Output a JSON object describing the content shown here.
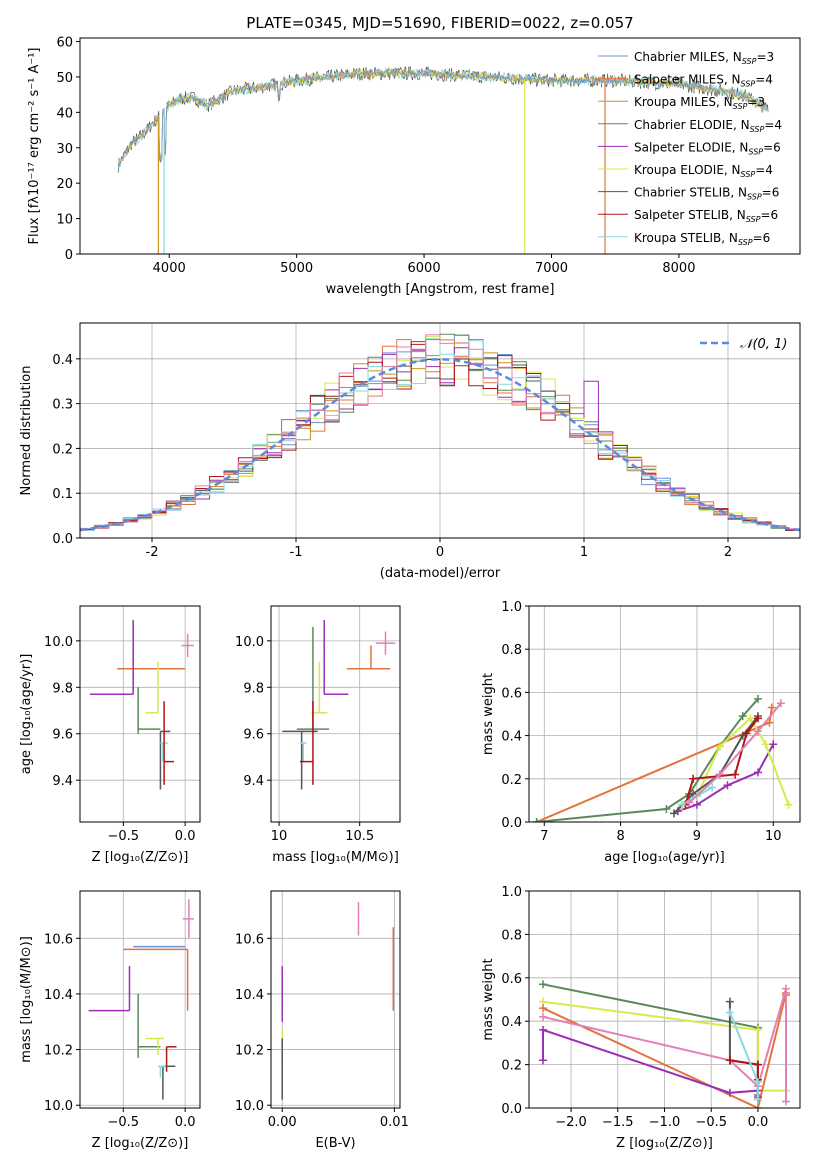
{
  "figure": {
    "title": "PLATE=0345, MJD=51690, FIBERID=0022, z=0.057"
  },
  "colors": {
    "Chabrier MILES": "#6b93d6",
    "Salpeter MILES": "#e1743a",
    "Kroupa MILES": "#c8961e",
    "Chabrier ELODIE": "#5a8a5a",
    "Salpeter ELODIE": "#9b2fb5",
    "Kroupa ELODIE": "#d9e84a",
    "Chabrier STELIB": "#555555",
    "Salpeter STELIB": "#b01515",
    "Kroupa STELIB": "#8ad8e0",
    "extra_pink": "#e37fb6",
    "gauss": "#5b8cdc"
  },
  "chart_data": [
    {
      "id": "spectrum",
      "type": "line",
      "title": "PLATE=0345, MJD=51690, FIBERID=0022, z=0.057",
      "xlabel": "wavelength [Angstrom, rest frame]",
      "ylabel": "Flux [fλ10⁻¹⁷ erg cm⁻² s⁻¹ A⁻¹]",
      "xlim": [
        3300,
        8950
      ],
      "ylim": [
        0,
        61
      ],
      "xticks": [
        4000,
        5000,
        6000,
        7000,
        8000
      ],
      "yticks": [
        0,
        10,
        20,
        30,
        40,
        50,
        60
      ],
      "grid": false,
      "legend_position": "top-right",
      "legend": [
        {
          "label": "Chabrier MILES, N",
          "sub": "SSP",
          "suffix": "=3"
        },
        {
          "label": "Salpeter MILES, N",
          "sub": "SSP",
          "suffix": "=4"
        },
        {
          "label": "Kroupa MILES, N",
          "sub": "SSP",
          "suffix": "=3"
        },
        {
          "label": "Chabrier ELODIE, N",
          "sub": "SSP",
          "suffix": "=4"
        },
        {
          "label": "Salpeter ELODIE, N",
          "sub": "SSP",
          "suffix": "=6"
        },
        {
          "label": "Kroupa ELODIE, N",
          "sub": "SSP",
          "suffix": "=4"
        },
        {
          "label": "Chabrier STELIB, N",
          "sub": "SSP",
          "suffix": "=6"
        },
        {
          "label": "Salpeter STELIB, N",
          "sub": "SSP",
          "suffix": "=6"
        },
        {
          "label": "Kroupa STELIB, N",
          "sub": "SSP",
          "suffix": "=6"
        }
      ],
      "continuum": {
        "x": [
          3600,
          3700,
          3800,
          3900,
          4000,
          4100,
          4200,
          4300,
          4500,
          4700,
          5000,
          5500,
          6000,
          6500,
          7000,
          7500,
          8000,
          8500,
          8700
        ],
        "y": [
          25,
          31,
          34,
          38,
          42,
          44,
          44,
          42,
          46,
          47,
          49,
          51,
          51,
          50,
          49,
          49,
          48,
          45,
          41
        ]
      }
    },
    {
      "id": "residuals",
      "type": "bar",
      "xlabel": "(data-model)/error",
      "ylabel": "Normed distribution",
      "xlim": [
        -2.5,
        2.5
      ],
      "ylim": [
        0,
        0.48
      ],
      "xticks": [
        -2,
        -1,
        0,
        1,
        2
      ],
      "yticks": [
        0.0,
        0.1,
        0.2,
        0.3,
        0.4
      ],
      "grid": true,
      "legend_position": "top-right",
      "legend": [
        "𝒩(0, 1)"
      ],
      "bin_width": 0.1,
      "outliers": [
        {
          "x": 0.05,
          "y": 0.455,
          "series": "Chabrier ELODIE"
        },
        {
          "x": 0.35,
          "y": 0.4,
          "series": "Chabrier STELIB"
        },
        {
          "x": 1.05,
          "y": 0.35,
          "series": "Salpeter ELODIE"
        },
        {
          "x": 0.75,
          "y": 0.355,
          "series": "Kroupa ELODIE"
        }
      ]
    },
    {
      "id": "age-vs-Z",
      "type": "scatter",
      "xlabel": "Z [log₁₀(Z/Z⊙)]",
      "ylabel": "age  [log₁₀(age/yr)]",
      "xlim": [
        -0.85,
        0.12
      ],
      "ylim": [
        9.22,
        10.15
      ],
      "xticks": [
        -0.5,
        0.0
      ],
      "xticklabels": [
        "−0.5",
        "0.0"
      ],
      "yticks": [
        9.4,
        9.6,
        9.8,
        10.0
      ],
      "grid": true,
      "points": [
        {
          "x": 0.0,
          "y": 9.88,
          "xerr": [
            0.55,
            0.0
          ],
          "yerr": [
            0,
            0
          ],
          "series": "Salpeter MILES"
        },
        {
          "x": 0.02,
          "y": 9.98,
          "xerr": [
            0.05,
            0.05
          ],
          "yerr": [
            0.05,
            0.05
          ],
          "series": "extra_pink"
        },
        {
          "x": -0.42,
          "y": 9.77,
          "xerr": [
            0.35,
            0.0
          ],
          "yerr": [
            0,
            0.32
          ],
          "series": "Salpeter ELODIE"
        },
        {
          "x": -0.22,
          "y": 9.69,
          "xerr": [
            0.1,
            0.0
          ],
          "yerr": [
            0,
            0.22
          ],
          "series": "Kroupa ELODIE"
        },
        {
          "x": -0.38,
          "y": 9.62,
          "xerr": [
            0.0,
            0.18
          ],
          "yerr": [
            0.02,
            0.18
          ],
          "series": "Chabrier ELODIE"
        },
        {
          "x": -0.2,
          "y": 9.61,
          "xerr": [
            0.0,
            0.08
          ],
          "yerr": [
            0.25,
            0.0
          ],
          "series": "Chabrier STELIB"
        },
        {
          "x": -0.18,
          "y": 9.56,
          "xerr": [
            0.02,
            0.04
          ],
          "yerr": [
            0.08,
            0.0
          ],
          "series": "Kroupa STELIB"
        },
        {
          "x": -0.17,
          "y": 9.48,
          "xerr": [
            0.0,
            0.08
          ],
          "yerr": [
            0.1,
            0.26
          ],
          "series": "Salpeter STELIB"
        }
      ]
    },
    {
      "id": "age-vs-mass",
      "type": "scatter",
      "xlabel": "mass [log₁₀(M/M⊙)]",
      "ylabel": "",
      "xlim": [
        9.95,
        10.75
      ],
      "ylim": [
        9.22,
        10.15
      ],
      "xticks": [
        10.0,
        10.5
      ],
      "yticks": [
        9.4,
        9.6,
        9.8,
        10.0
      ],
      "grid": true,
      "points": [
        {
          "x": 10.57,
          "y": 9.88,
          "xerr": [
            0.15,
            0.12
          ],
          "yerr": [
            0.0,
            0.1
          ],
          "series": "Salpeter MILES"
        },
        {
          "x": 10.66,
          "y": 9.99,
          "xerr": [
            0.06,
            0.06
          ],
          "yerr": [
            0.05,
            0.05
          ],
          "series": "extra_pink"
        },
        {
          "x": 10.28,
          "y": 9.77,
          "xerr": [
            0.0,
            0.15
          ],
          "yerr": [
            0.0,
            0.32
          ],
          "series": "Salpeter ELODIE"
        },
        {
          "x": 10.25,
          "y": 9.69,
          "xerr": [
            0.05,
            0.05
          ],
          "yerr": [
            0.0,
            0.22
          ],
          "series": "Kroupa ELODIE"
        },
        {
          "x": 10.21,
          "y": 9.62,
          "xerr": [
            0.1,
            0.1
          ],
          "yerr": [
            0.02,
            0.44
          ],
          "series": "Chabrier ELODIE"
        },
        {
          "x": 10.14,
          "y": 9.61,
          "xerr": [
            0.12,
            0.1
          ],
          "yerr": [
            0.25,
            0.0
          ],
          "series": "Chabrier STELIB"
        },
        {
          "x": 10.15,
          "y": 9.56,
          "xerr": [
            0.02,
            0.02
          ],
          "yerr": [
            0.08,
            0.0
          ],
          "series": "Kroupa STELIB"
        },
        {
          "x": 10.21,
          "y": 9.48,
          "xerr": [
            0.08,
            0.0
          ],
          "yerr": [
            0.1,
            0.26
          ],
          "series": "Salpeter STELIB"
        }
      ]
    },
    {
      "id": "weight-vs-age",
      "type": "line",
      "xlabel": "age  [log₁₀(age/yr)]",
      "ylabel": "mass weight",
      "xlim": [
        6.8,
        10.35
      ],
      "ylim": [
        0,
        1.0
      ],
      "xticks": [
        7,
        8,
        9,
        10
      ],
      "yticks": [
        0.0,
        0.2,
        0.4,
        0.6,
        0.8,
        1.0
      ],
      "grid": true,
      "series": [
        {
          "name": "Salpeter MILES",
          "x": [
            6.9,
            9.95,
            9.98
          ],
          "y": [
            0.0,
            0.46,
            0.53
          ]
        },
        {
          "name": "Chabrier ELODIE",
          "x": [
            6.9,
            8.6,
            8.9,
            9.3,
            9.6,
            9.8
          ],
          "y": [
            0.0,
            0.06,
            0.13,
            0.35,
            0.49,
            0.57
          ]
        },
        {
          "name": "Salpeter ELODIE",
          "x": [
            8.75,
            9.0,
            9.4,
            9.8,
            10.0
          ],
          "y": [
            0.05,
            0.08,
            0.17,
            0.23,
            0.36
          ]
        },
        {
          "name": "Kroupa ELODIE",
          "x": [
            8.8,
            9.0,
            9.3,
            9.7,
            9.9,
            10.2
          ],
          "y": [
            0.07,
            0.12,
            0.35,
            0.48,
            0.36,
            0.08
          ]
        },
        {
          "name": "Chabrier STELIB",
          "x": [
            8.7,
            8.95,
            9.3,
            9.6,
            9.8
          ],
          "y": [
            0.04,
            0.13,
            0.22,
            0.4,
            0.49
          ]
        },
        {
          "name": "Salpeter STELIB",
          "x": [
            8.85,
            8.95,
            9.5,
            9.65,
            9.8
          ],
          "y": [
            0.08,
            0.2,
            0.22,
            0.41,
            0.48
          ]
        },
        {
          "name": "Kroupa STELIB",
          "x": [
            8.8,
            9.0,
            9.2
          ],
          "y": [
            0.08,
            0.12,
            0.16
          ]
        },
        {
          "name": "extra_pink",
          "x": [
            8.9,
            9.3,
            9.8,
            10.1
          ],
          "y": [
            0.09,
            0.22,
            0.42,
            0.55
          ]
        }
      ]
    },
    {
      "id": "mass-vs-Z",
      "type": "scatter",
      "xlabel": "Z [log₁₀(Z/Z⊙)]",
      "ylabel": "mass [log₁₀(M/M⊙)]",
      "xlim": [
        -0.85,
        0.12
      ],
      "ylim": [
        9.99,
        10.77
      ],
      "xticks": [
        -0.5,
        0.0
      ],
      "xticklabels": [
        "−0.5",
        "0.0"
      ],
      "yticks": [
        10.0,
        10.2,
        10.4,
        10.6
      ],
      "grid": true,
      "points": [
        {
          "x": 0.02,
          "y": 10.56,
          "xerr": [
            0.52,
            0.0
          ],
          "yerr": [
            0.22,
            0.0
          ],
          "series": "Salpeter MILES"
        },
        {
          "x": 0.03,
          "y": 10.67,
          "xerr": [
            0.05,
            0.04
          ],
          "yerr": [
            0.07,
            0.07
          ],
          "series": "extra_pink"
        },
        {
          "x": 0.0,
          "y": 10.57,
          "xerr": [
            0.42,
            0.0
          ],
          "yerr": [
            0,
            0
          ],
          "series": "Chabrier MILES"
        },
        {
          "x": -0.45,
          "y": 10.34,
          "xerr": [
            0.33,
            0.0
          ],
          "yerr": [
            0.0,
            0.16
          ],
          "series": "Salpeter ELODIE"
        },
        {
          "x": -0.38,
          "y": 10.21,
          "xerr": [
            0.0,
            0.18
          ],
          "yerr": [
            0.04,
            0.19
          ],
          "series": "Chabrier ELODIE"
        },
        {
          "x": -0.22,
          "y": 10.24,
          "xerr": [
            0.1,
            0.05
          ],
          "yerr": [
            0.06,
            0.0
          ],
          "series": "Kroupa ELODIE"
        },
        {
          "x": -0.15,
          "y": 10.21,
          "xerr": [
            0.0,
            0.08
          ],
          "yerr": [
            0.09,
            0.0
          ],
          "series": "Salpeter STELIB"
        },
        {
          "x": -0.18,
          "y": 10.14,
          "xerr": [
            0.02,
            0.1
          ],
          "yerr": [
            0.12,
            0.0
          ],
          "series": "Chabrier STELIB"
        },
        {
          "x": -0.2,
          "y": 10.14,
          "xerr": [
            0.02,
            0.04
          ],
          "yerr": [
            0.04,
            0.0
          ],
          "series": "Kroupa STELIB"
        }
      ]
    },
    {
      "id": "mass-vs-EBV",
      "type": "scatter",
      "xlabel": "E(B-V)",
      "ylabel": "",
      "xlim": [
        -0.001,
        0.0105
      ],
      "ylim": [
        9.99,
        10.77
      ],
      "xticks": [
        0.0,
        0.01
      ],
      "xticklabels": [
        "0.00",
        "0.01"
      ],
      "yticks": [
        10.0,
        10.2,
        10.4,
        10.6
      ],
      "grid": true,
      "points": [
        {
          "x": 0.0068,
          "y": 10.67,
          "xerr": [
            0,
            0
          ],
          "yerr": [
            0.06,
            0.06
          ],
          "series": "extra_pink"
        },
        {
          "x": 0.0099,
          "y": 10.5,
          "xerr": [
            0,
            0
          ],
          "yerr": [
            0.16,
            0.14
          ],
          "series": "Salpeter MILES"
        },
        {
          "x": 0.0,
          "y": 10.4,
          "xerr": [
            0,
            0
          ],
          "yerr": [
            0.1,
            0.1
          ],
          "series": "Salpeter ELODIE"
        },
        {
          "x": 0.0,
          "y": 10.21,
          "xerr": [
            0,
            0
          ],
          "yerr": [
            0.04,
            0.06
          ],
          "series": "Kroupa ELODIE"
        },
        {
          "x": 0.0,
          "y": 10.14,
          "xerr": [
            0,
            0
          ],
          "yerr": [
            0.12,
            0.1
          ],
          "series": "Chabrier STELIB"
        }
      ]
    },
    {
      "id": "weight-vs-Z",
      "type": "line",
      "xlabel": "Z [log₁₀(Z/Z⊙)]",
      "ylabel": "mass weight",
      "xlim": [
        -2.45,
        0.45
      ],
      "ylim": [
        0,
        1.0
      ],
      "xticks": [
        -2.0,
        -1.5,
        -1.0,
        -0.5,
        0.0
      ],
      "xticklabels": [
        "−2.0",
        "−1.5",
        "−1.0",
        "−0.5",
        "0.0"
      ],
      "yticks": [
        0.0,
        0.2,
        0.4,
        0.6,
        0.8,
        1.0
      ],
      "grid": true,
      "series": [
        {
          "name": "Chabrier ELODIE",
          "x": [
            -2.3,
            0.0,
            0.0
          ],
          "y": [
            0.57,
            0.37,
            0.06
          ]
        },
        {
          "name": "Kroupa ELODIE",
          "x": [
            -2.3,
            0.0,
            0.0,
            0.3
          ],
          "y": [
            0.49,
            0.36,
            0.08,
            0.08
          ]
        },
        {
          "name": "Salpeter MILES",
          "x": [
            -2.3,
            0.0,
            0.3,
            0.3
          ],
          "y": [
            0.46,
            0.0,
            0.53,
            0.52
          ]
        },
        {
          "name": "extra_pink",
          "x": [
            -2.3,
            -0.3,
            0.0,
            0.3,
            0.3
          ],
          "y": [
            0.42,
            0.22,
            0.1,
            0.55,
            0.03
          ]
        },
        {
          "name": "Salpeter ELODIE",
          "x": [
            -2.3,
            -2.3,
            -0.3,
            0.0,
            0.0
          ],
          "y": [
            0.22,
            0.36,
            0.07,
            0.08,
            0.05
          ]
        },
        {
          "name": "Chabrier STELIB",
          "x": [
            -0.3,
            -0.3,
            0.0,
            0.0
          ],
          "y": [
            0.49,
            0.22,
            0.2,
            0.04
          ]
        },
        {
          "name": "Salpeter STELIB",
          "x": [
            -0.3,
            -0.3,
            0.0,
            0.0
          ],
          "y": [
            0.22,
            0.22,
            0.2,
            0.13
          ]
        },
        {
          "name": "Kroupa STELIB",
          "x": [
            -0.3,
            0.0,
            0.0
          ],
          "y": [
            0.44,
            0.12,
            0.04
          ]
        }
      ]
    }
  ]
}
